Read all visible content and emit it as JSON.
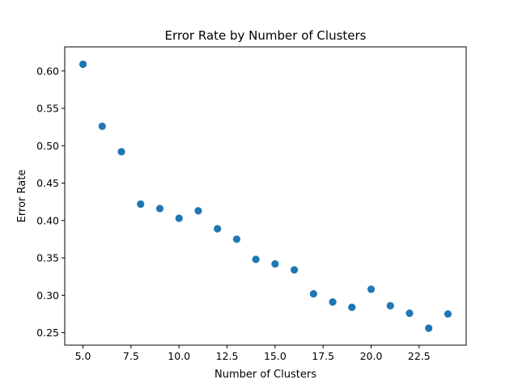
{
  "chart_data": {
    "type": "scatter",
    "title": "Error Rate by Number of Clusters",
    "xlabel": "Number of Clusters",
    "ylabel": "Error Rate",
    "xlim": [
      4.05,
      24.95
    ],
    "ylim": [
      0.2333,
      0.6322
    ],
    "xticks": [
      5.0,
      7.5,
      10.0,
      12.5,
      15.0,
      17.5,
      20.0,
      22.5
    ],
    "xtick_labels": [
      "5.0",
      "7.5",
      "10.0",
      "12.5",
      "15.0",
      "17.5",
      "20.0",
      "22.5"
    ],
    "yticks": [
      0.25,
      0.3,
      0.35,
      0.4,
      0.45,
      0.5,
      0.55,
      0.6
    ],
    "ytick_labels": [
      "0.25",
      "0.30",
      "0.35",
      "0.40",
      "0.45",
      "0.50",
      "0.55",
      "0.60"
    ],
    "grid": false,
    "marker_color": "#1f77b4",
    "x": [
      5,
      6,
      7,
      8,
      9,
      10,
      11,
      12,
      13,
      14,
      15,
      16,
      17,
      18,
      19,
      20,
      21,
      22,
      23,
      24
    ],
    "y": [
      0.609,
      0.526,
      0.492,
      0.422,
      0.416,
      0.403,
      0.413,
      0.389,
      0.375,
      0.348,
      0.342,
      0.334,
      0.302,
      0.291,
      0.284,
      0.308,
      0.286,
      0.276,
      0.256,
      0.275
    ]
  }
}
